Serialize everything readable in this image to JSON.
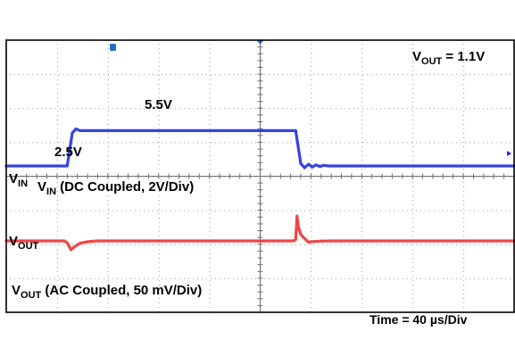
{
  "chart_data": {
    "type": "line",
    "title": "",
    "x_unit": "µs",
    "x_div_value": 40,
    "x_divisions": 10,
    "xlim": [
      0,
      400
    ],
    "grid": true,
    "annotations": {
      "vout_nominal": "V",
      "vout_nominal_sub": "OUT",
      "vout_nominal_value": " = 1.1V",
      "vin_low": "2.5V",
      "vin_high": "5.5V",
      "vin_channel": "V",
      "vin_channel_sub": "IN",
      "vin_channel_desc": " (DC Coupled, 2V/Div)",
      "vin_label": "V",
      "vin_label_sub": "IN",
      "vout_label": "V",
      "vout_label_sub": "OUT",
      "vout_channel": "V",
      "vout_channel_sub": "OUT",
      "vout_channel_desc": " (AC Coupled, 50 mV/Div)",
      "time_scale": "Time = 40 µs/Div"
    },
    "series": [
      {
        "name": "VIN",
        "color": "#1f2fe0",
        "coupling": "DC",
        "volts_per_div": 2,
        "unit": "V",
        "points": [
          [
            0,
            2.5
          ],
          [
            48,
            2.5
          ],
          [
            52,
            5.3
          ],
          [
            55,
            5.65
          ],
          [
            58,
            5.5
          ],
          [
            116,
            5.5
          ],
          [
            174,
            5.5
          ],
          [
            228,
            5.5
          ],
          [
            232,
            2.7
          ],
          [
            235,
            2.35
          ],
          [
            238,
            2.65
          ],
          [
            241,
            2.4
          ],
          [
            244,
            2.6
          ],
          [
            247,
            2.45
          ],
          [
            250,
            2.55
          ],
          [
            254,
            2.5
          ],
          [
            300,
            2.5
          ],
          [
            400,
            2.5
          ]
        ]
      },
      {
        "name": "VOUT",
        "color": "#f03030",
        "coupling": "AC",
        "volts_per_div": 0.05,
        "unit": "mV",
        "points": [
          [
            0,
            0
          ],
          [
            46,
            0
          ],
          [
            48,
            -12
          ],
          [
            51,
            -55
          ],
          [
            54,
            -35
          ],
          [
            58,
            -15
          ],
          [
            64,
            -5
          ],
          [
            72,
            0
          ],
          [
            116,
            0
          ],
          [
            174,
            0
          ],
          [
            226,
            0
          ],
          [
            228,
            8
          ],
          [
            229,
            155
          ],
          [
            230,
            90
          ],
          [
            232,
            40
          ],
          [
            235,
            15
          ],
          [
            238,
            -8
          ],
          [
            242,
            -4
          ],
          [
            248,
            -1
          ],
          [
            256,
            0
          ],
          [
            320,
            0
          ],
          [
            400,
            0
          ]
        ]
      }
    ]
  }
}
